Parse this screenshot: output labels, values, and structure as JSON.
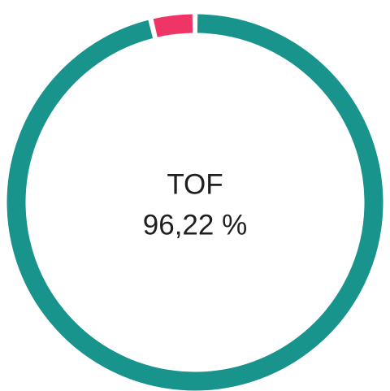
{
  "chart_data": {
    "type": "donut",
    "center_label": "TOF",
    "values": [
      96.22,
      3.78
    ],
    "value_labels": [
      "96,22 %",
      null
    ],
    "colors": [
      "#19948c",
      "#ef3566"
    ]
  }
}
